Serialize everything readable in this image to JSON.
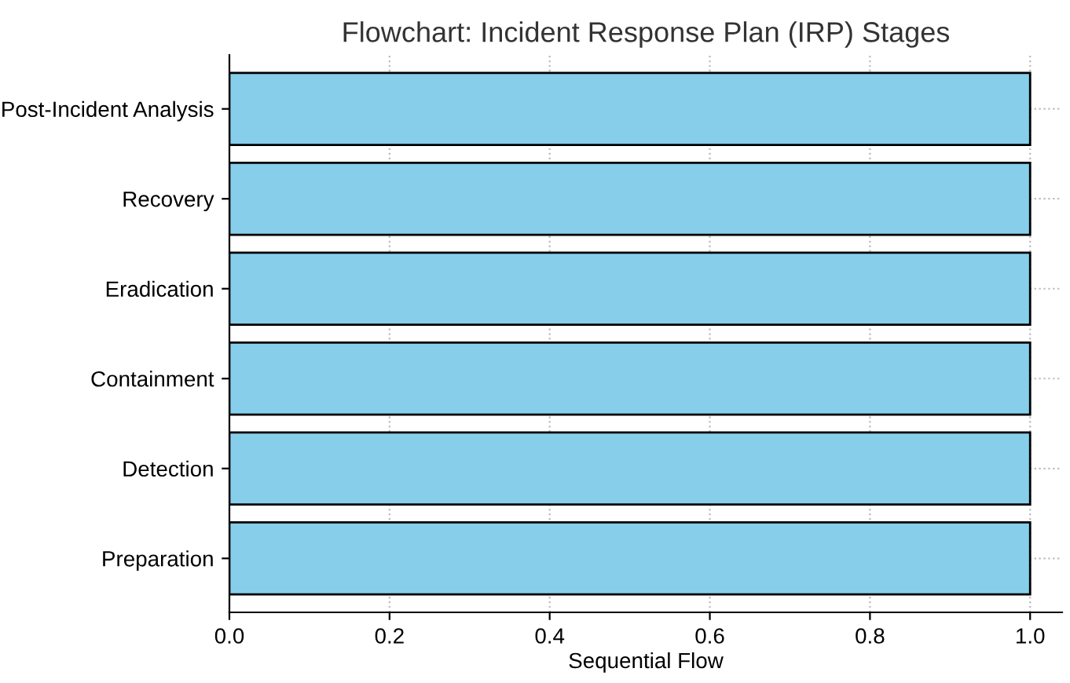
{
  "chart_data": {
    "type": "bar",
    "orientation": "horizontal",
    "title": "Flowchart: Incident Response Plan (IRP) Stages",
    "xlabel": "Sequential Flow",
    "categories": [
      "Post-Incident Analysis",
      "Recovery",
      "Eradication",
      "Containment",
      "Detection",
      "Preparation"
    ],
    "values": [
      1,
      1,
      1,
      1,
      1,
      1
    ],
    "color": "#87ceeb",
    "xlim": [
      0,
      1.04
    ],
    "xticks": [
      {
        "value": 0,
        "label": "0.0"
      },
      {
        "value": 0.2,
        "label": "0.2"
      },
      {
        "value": 0.4,
        "label": "0.4"
      },
      {
        "value": 0.6,
        "label": "0.6"
      },
      {
        "value": 0.8,
        "label": "0.8"
      },
      {
        "value": 1,
        "label": "1.0"
      }
    ],
    "grid": true,
    "legend": false
  }
}
